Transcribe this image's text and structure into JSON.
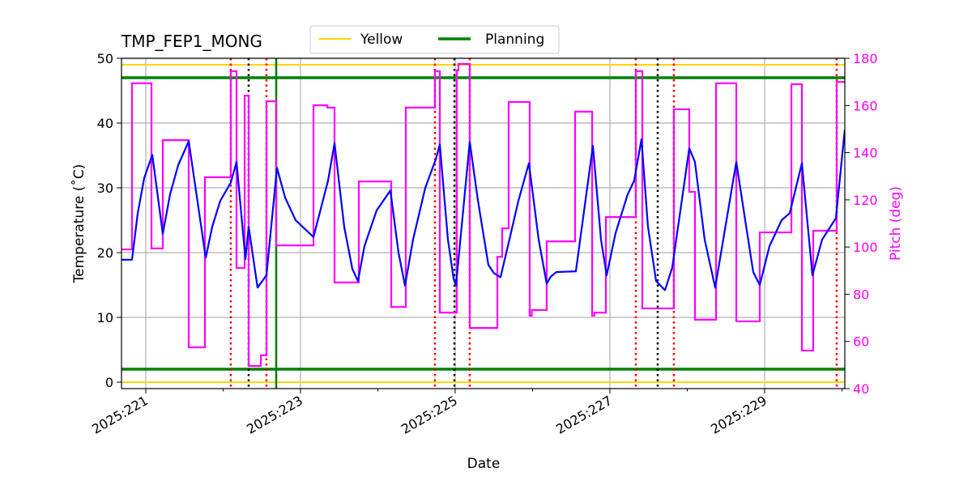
{
  "chart_data": {
    "type": "line",
    "title": "TMP_FEP1_MONG",
    "xlabel": "Date",
    "ylabel": "Temperature ($^\\circ$C)",
    "ylabel_display": "Temperature (˚C)",
    "y2label": "Pitch (deg)",
    "xlim": [
      220.686,
      230.037
    ],
    "ylim": [
      -1,
      50
    ],
    "y2lim": [
      40,
      180
    ],
    "grid": true,
    "legend_placement": "top-center",
    "x_ticks": [
      221,
      223,
      225,
      227,
      229
    ],
    "x_tick_labels": [
      "2025:221",
      "2025:223",
      "2025:225",
      "2025:227",
      "2025:229"
    ],
    "x_minor_ticks": [
      222,
      224,
      226,
      228,
      230
    ],
    "y_ticks": [
      0,
      10,
      20,
      30,
      40,
      50
    ],
    "y_tick_labels": [
      "0",
      "10",
      "20",
      "30",
      "40",
      "50"
    ],
    "y2_ticks": [
      40,
      60,
      80,
      100,
      120,
      140,
      160,
      180
    ],
    "y2_tick_labels": [
      "40",
      "60",
      "80",
      "100",
      "120",
      "140",
      "160",
      "180"
    ],
    "colors": {
      "temperature": "#0000ff",
      "pitch": "#ff00ff",
      "yellow": "#ffd700",
      "planning": "#008000",
      "red_marker": "#ff0000",
      "black_marker": "#000000",
      "grid": "#b0b0b0"
    },
    "legend": [
      {
        "label": "Yellow",
        "color": "#ffd700"
      },
      {
        "label": "Planning",
        "color": "#008000"
      }
    ],
    "limits": {
      "yellow": [
        0,
        49
      ],
      "planning": [
        2,
        47
      ]
    },
    "planning_vertical_day": 222.686,
    "red_dotted_days": [
      222.099,
      222.56,
      224.738,
      225.188,
      227.335,
      227.827,
      229.932
    ],
    "black_dotted_days": [
      222.33,
      224.99,
      227.618
    ],
    "temperature": [
      [
        220.686,
        18.9
      ],
      [
        220.822,
        18.9
      ],
      [
        220.895,
        26
      ],
      [
        220.979,
        31.5
      ],
      [
        221.084,
        35.1
      ],
      [
        221.22,
        22.9
      ],
      [
        221.314,
        29
      ],
      [
        221.419,
        33.5
      ],
      [
        221.555,
        37.2
      ],
      [
        221.775,
        19.2
      ],
      [
        221.859,
        24
      ],
      [
        221.963,
        28
      ],
      [
        222.099,
        30.8
      ],
      [
        222.173,
        34
      ],
      [
        222.288,
        19
      ],
      [
        222.33,
        24
      ],
      [
        222.445,
        14.6
      ],
      [
        222.56,
        16.5
      ],
      [
        222.696,
        33.1
      ],
      [
        222.801,
        28.5
      ],
      [
        222.937,
        25
      ],
      [
        223.168,
        22.4
      ],
      [
        223.356,
        31.1
      ],
      [
        223.44,
        36.9
      ],
      [
        223.565,
        24
      ],
      [
        223.67,
        17.5
      ],
      [
        223.743,
        15.6
      ],
      [
        223.827,
        21
      ],
      [
        223.984,
        26.5
      ],
      [
        224.162,
        29.6
      ],
      [
        224.267,
        20
      ],
      [
        224.351,
        14.9
      ],
      [
        224.455,
        22
      ],
      [
        224.613,
        30
      ],
      [
        224.749,
        34.4
      ],
      [
        224.801,
        36.7
      ],
      [
        224.906,
        22
      ],
      [
        224.979,
        16
      ],
      [
        225.01,
        14.9
      ],
      [
        225.188,
        37.1
      ],
      [
        225.293,
        28.1
      ],
      [
        225.429,
        18.1
      ],
      [
        225.503,
        16.8
      ],
      [
        225.586,
        16.2
      ],
      [
        225.691,
        21.5
      ],
      [
        225.817,
        28
      ],
      [
        225.953,
        33.8
      ],
      [
        226.079,
        22
      ],
      [
        226.183,
        15.2
      ],
      [
        226.236,
        16.3
      ],
      [
        226.309,
        17
      ],
      [
        226.56,
        17.1
      ],
      [
        226.78,
        36.5
      ],
      [
        226.885,
        22
      ],
      [
        226.958,
        16.5
      ],
      [
        227.073,
        23
      ],
      [
        227.23,
        29
      ],
      [
        227.314,
        31.1
      ],
      [
        227.408,
        37.5
      ],
      [
        227.492,
        24
      ],
      [
        227.597,
        15.6
      ],
      [
        227.712,
        14.2
      ],
      [
        227.806,
        17.7
      ],
      [
        228.026,
        36.1
      ],
      [
        228.099,
        34
      ],
      [
        228.225,
        22
      ],
      [
        228.361,
        14.6
      ],
      [
        228.634,
        34
      ],
      [
        228.749,
        25
      ],
      [
        228.853,
        17
      ],
      [
        228.937,
        15
      ],
      [
        229.063,
        21
      ],
      [
        229.22,
        25
      ],
      [
        229.325,
        26.1
      ],
      [
        229.482,
        33.8
      ],
      [
        229.618,
        16.5
      ],
      [
        229.743,
        22
      ],
      [
        229.921,
        25.3
      ],
      [
        230.037,
        39
      ]
    ],
    "pitch_steps": [
      [
        220.686,
        99.0
      ],
      [
        220.822,
        169.4
      ],
      [
        221.073,
        99.4
      ],
      [
        221.22,
        145.3
      ],
      [
        221.555,
        57.5
      ],
      [
        221.764,
        129.6
      ],
      [
        222.099,
        174.5
      ],
      [
        222.173,
        91.1
      ],
      [
        222.278,
        164.2
      ],
      [
        222.33,
        49.6
      ],
      [
        222.487,
        54.1
      ],
      [
        222.56,
        161.8
      ],
      [
        222.686,
        100.7
      ],
      [
        223.168,
        160.1
      ],
      [
        223.346,
        159.1
      ],
      [
        223.44,
        85.0
      ],
      [
        223.754,
        127.8
      ],
      [
        224.173,
        74.6
      ],
      [
        224.361,
        159.1
      ],
      [
        224.738,
        174.5
      ],
      [
        224.801,
        72.2
      ],
      [
        225.021,
        174.9
      ],
      [
        225.042,
        177.6
      ],
      [
        225.188,
        65.7
      ],
      [
        225.545,
        95.9
      ],
      [
        225.607,
        107.9
      ],
      [
        225.691,
        161.5
      ],
      [
        225.963,
        70.9
      ],
      [
        225.99,
        73.3
      ],
      [
        226.183,
        102.4
      ],
      [
        226.55,
        157.4
      ],
      [
        226.77,
        70.9
      ],
      [
        226.8,
        72.2
      ],
      [
        226.948,
        112.7
      ],
      [
        227.335,
        174.5
      ],
      [
        227.419,
        74.0
      ],
      [
        227.827,
        158.4
      ],
      [
        228.026,
        123.4
      ],
      [
        228.099,
        69.2
      ],
      [
        228.372,
        169.4
      ],
      [
        228.634,
        68.5
      ],
      [
        228.937,
        106.2
      ],
      [
        229.346,
        169.0
      ],
      [
        229.482,
        56.1
      ],
      [
        229.628,
        106.9
      ],
      [
        229.932,
        170.0
      ]
    ]
  }
}
